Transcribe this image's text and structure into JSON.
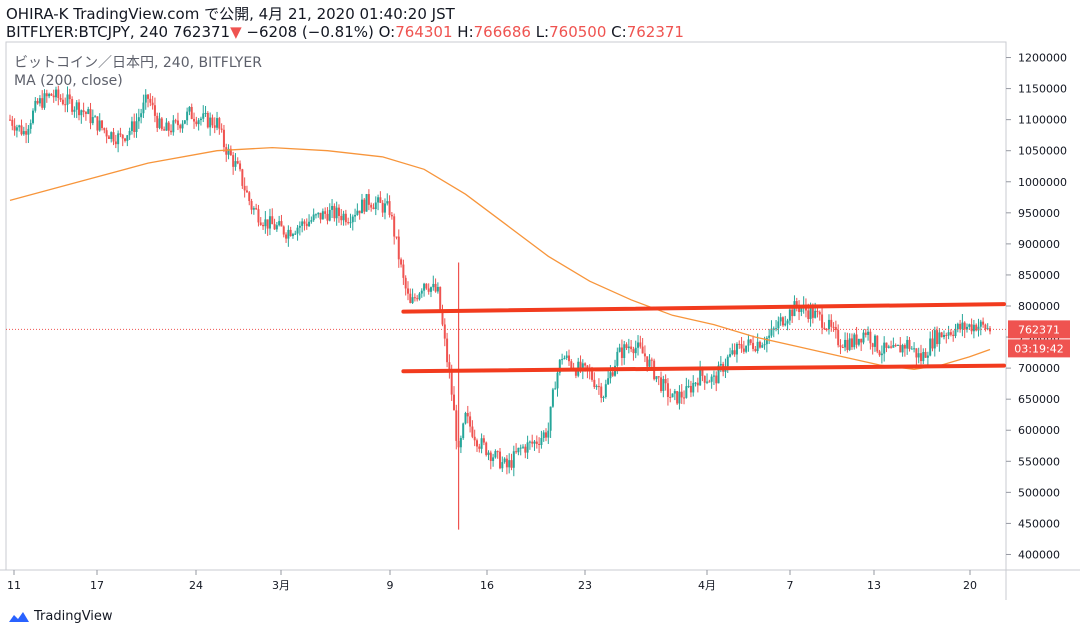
{
  "header": {
    "publisher": "OHIRA-K TradingView.com で公開, 4月 21, 2020 01:40:20 JST",
    "symbol": "BITFLYER:BTCJPY, 240",
    "last": "762371",
    "change": "−6208 (−0.81%)",
    "open_label": "O:",
    "open": "764301",
    "high_label": "H:",
    "high": "766686",
    "low_label": "L:",
    "low": "760500",
    "close_label": "C:",
    "close": "762371"
  },
  "legend": {
    "symbol_line": "ビットコイン／日本円, 240, BITFLYER",
    "indicator": "MA (200, close)"
  },
  "brand": {
    "name": "TradingView",
    "icon": "tradingview-logo-icon"
  },
  "colors": {
    "up": "#26a69a",
    "down": "#ef5350",
    "ma": "#f7953b",
    "trendline": "#f23b1e",
    "axis_text": "#131722",
    "grid": "#f0f3fa",
    "price_tag": "#ef5350"
  },
  "chart_data": {
    "type": "candlestick",
    "y_axis": {
      "ticks": [
        1200000,
        1150000,
        1100000,
        1050000,
        1000000,
        950000,
        900000,
        850000,
        800000,
        750000,
        700000,
        650000,
        600000,
        550000,
        500000,
        450000,
        400000
      ],
      "range": [
        375000,
        1225000
      ]
    },
    "x_axis": {
      "ticks": [
        "11",
        "17",
        "24",
        "3月",
        "9",
        "16",
        "23",
        "4月",
        "7",
        "13",
        "20"
      ]
    },
    "current_price_label": "762371",
    "countdown_label": "03:19:42",
    "current_price": 762371,
    "close_path": [
      [
        0,
        1100000
      ],
      [
        2,
        1080000
      ],
      [
        4,
        1125000
      ],
      [
        6,
        1140000
      ],
      [
        8,
        1130000
      ],
      [
        10,
        1120000
      ],
      [
        12,
        1100000
      ],
      [
        14,
        1080000
      ],
      [
        16,
        1070000
      ],
      [
        18,
        1090000
      ],
      [
        20,
        1135000
      ],
      [
        22,
        1080000
      ],
      [
        24,
        1090000
      ],
      [
        26,
        1110000
      ],
      [
        28,
        1100000
      ],
      [
        30,
        1095000
      ],
      [
        31,
        1060000
      ],
      [
        33,
        1020000
      ],
      [
        35,
        960000
      ],
      [
        37,
        935000
      ],
      [
        40,
        920000
      ],
      [
        43,
        935000
      ],
      [
        46,
        950000
      ],
      [
        49,
        945000
      ],
      [
        52,
        970000
      ],
      [
        55,
        955000
      ],
      [
        56,
        900000
      ],
      [
        57,
        840000
      ],
      [
        58,
        800000
      ],
      [
        60,
        840000
      ],
      [
        62,
        820000
      ],
      [
        63,
        740000
      ],
      [
        64,
        660000
      ],
      [
        65,
        560000
      ],
      [
        66,
        620000
      ],
      [
        68,
        580000
      ],
      [
        70,
        560000
      ],
      [
        72,
        540000
      ],
      [
        74,
        570000
      ],
      [
        76,
        580000
      ],
      [
        78,
        600000
      ],
      [
        79,
        680000
      ],
      [
        80,
        720000
      ],
      [
        82,
        700000
      ],
      [
        84,
        690000
      ],
      [
        86,
        660000
      ],
      [
        88,
        720000
      ],
      [
        90,
        740000
      ],
      [
        92,
        720000
      ],
      [
        94,
        680000
      ],
      [
        96,
        650000
      ],
      [
        98,
        660000
      ],
      [
        100,
        690000
      ],
      [
        102,
        680000
      ],
      [
        104,
        715000
      ],
      [
        106,
        735000
      ],
      [
        108,
        740000
      ],
      [
        110,
        750000
      ],
      [
        112,
        780000
      ],
      [
        114,
        800000
      ],
      [
        116,
        790000
      ],
      [
        118,
        775000
      ],
      [
        120,
        745000
      ],
      [
        122,
        740000
      ],
      [
        124,
        760000
      ],
      [
        126,
        730000
      ],
      [
        128,
        725000
      ],
      [
        130,
        740000
      ],
      [
        132,
        715000
      ],
      [
        134,
        750000
      ],
      [
        136,
        760000
      ],
      [
        138,
        765000
      ],
      [
        140,
        770000
      ],
      [
        142,
        762371
      ]
    ],
    "ma200_path": [
      [
        0,
        970000
      ],
      [
        10,
        1000000
      ],
      [
        20,
        1030000
      ],
      [
        30,
        1050000
      ],
      [
        38,
        1055000
      ],
      [
        46,
        1050000
      ],
      [
        54,
        1040000
      ],
      [
        60,
        1020000
      ],
      [
        66,
        980000
      ],
      [
        72,
        930000
      ],
      [
        78,
        880000
      ],
      [
        84,
        840000
      ],
      [
        90,
        810000
      ],
      [
        96,
        785000
      ],
      [
        102,
        770000
      ],
      [
        108,
        750000
      ],
      [
        114,
        735000
      ],
      [
        120,
        720000
      ],
      [
        126,
        705000
      ],
      [
        131,
        698000
      ],
      [
        135,
        705000
      ],
      [
        139,
        718000
      ],
      [
        142,
        730000
      ]
    ],
    "trendlines": [
      {
        "name": "resistance",
        "from": [
          57,
          791000
        ],
        "to": [
          142,
          803000
        ]
      },
      {
        "name": "support",
        "from": [
          57,
          695000
        ],
        "to": [
          142,
          704000
        ]
      }
    ]
  }
}
